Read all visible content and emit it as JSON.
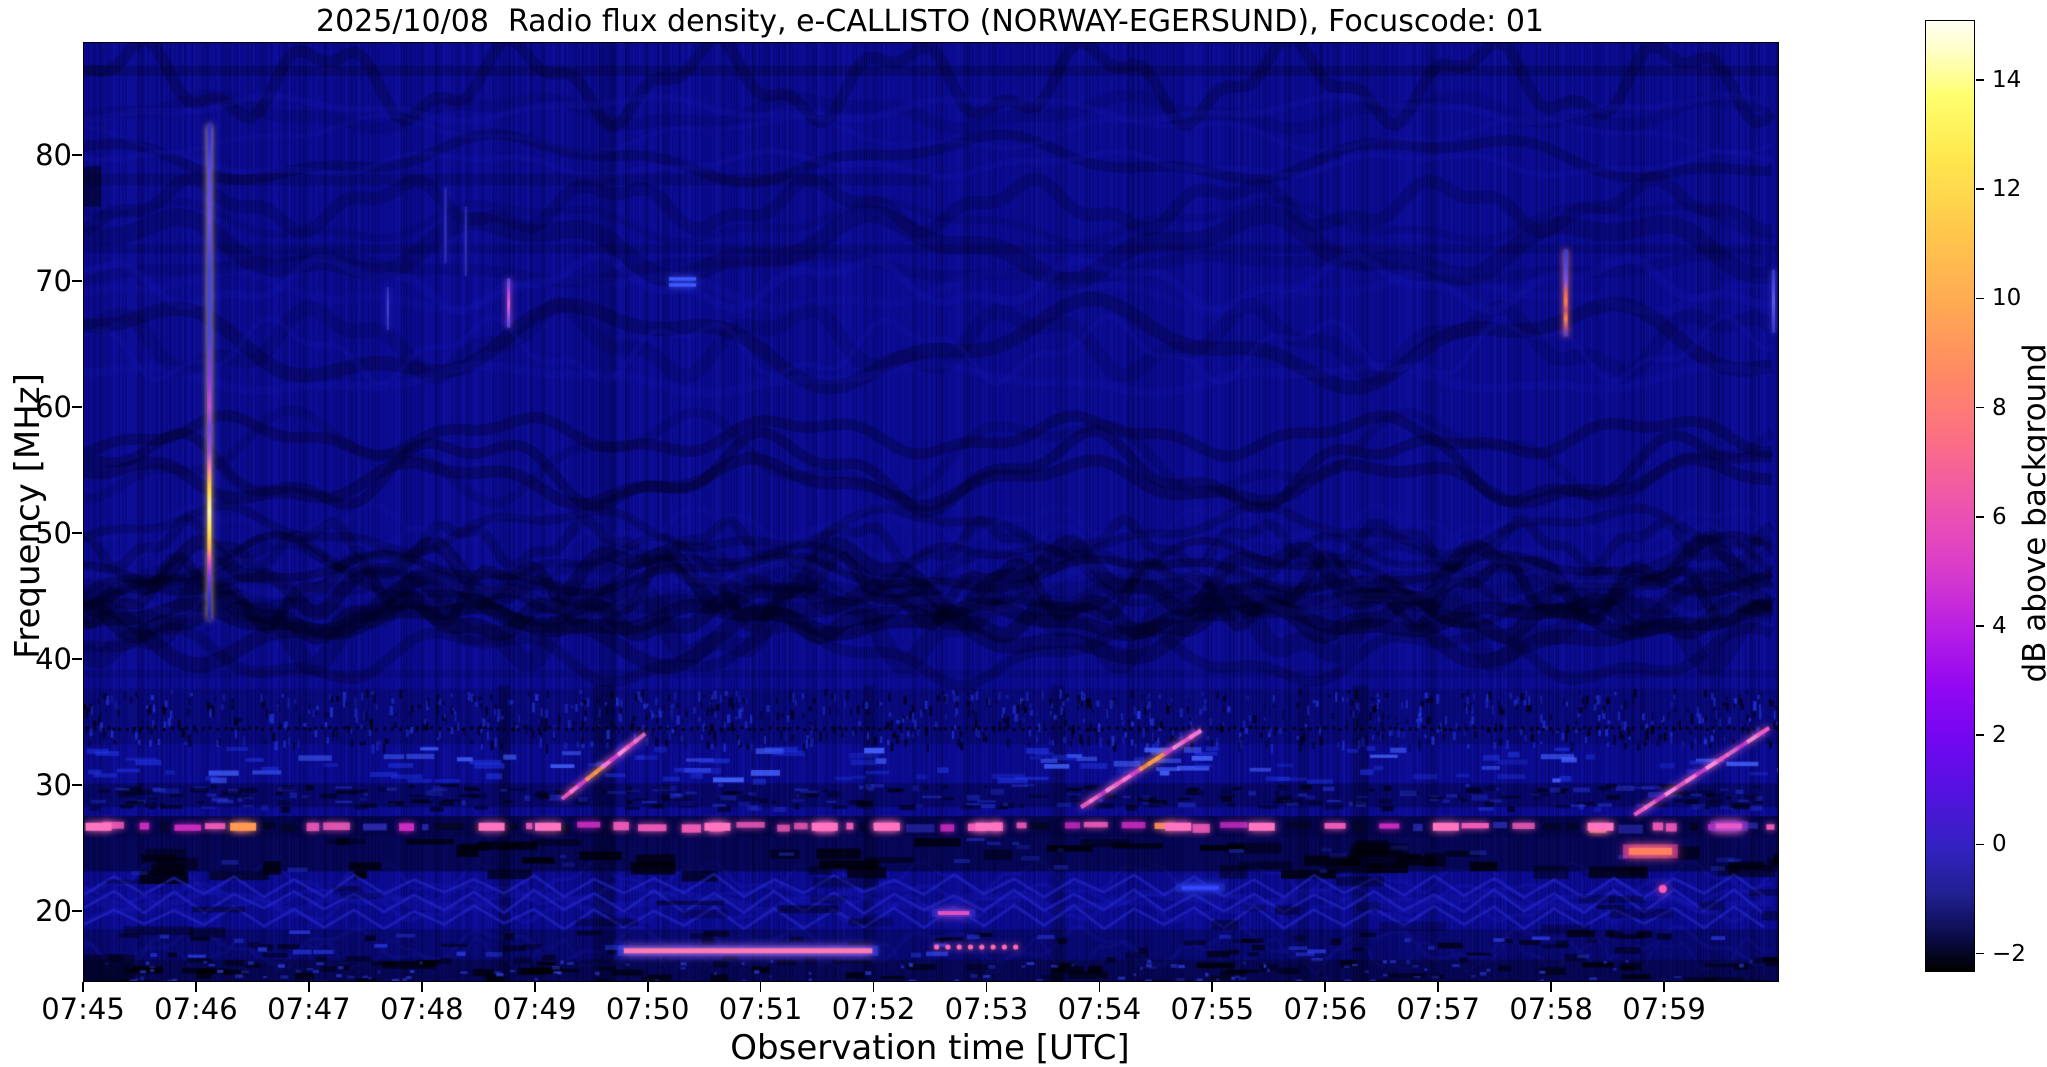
{
  "title": "2025/10/08  Radio flux density, e-CALLISTO (NORWAY-EGERSUND), Focuscode: 01",
  "chart_data": {
    "type": "heatmap",
    "title": "2025/10/08  Radio flux density, e-CALLISTO (NORWAY-EGERSUND), Focuscode: 01",
    "xlabel": "Observation time [UTC]",
    "ylabel": "Frequency [MHz]",
    "x_ticks": [
      "07:45",
      "07:46",
      "07:47",
      "07:48",
      "07:49",
      "07:50",
      "07:51",
      "07:52",
      "07:53",
      "07:54",
      "07:55",
      "07:56",
      "07:57",
      "07:58",
      "07:59"
    ],
    "x_total_minutes": 15,
    "x_range": [
      "07:45:00",
      "08:00:00"
    ],
    "y_ticks": [
      80,
      70,
      60,
      50,
      40,
      30,
      20
    ],
    "ylim": [
      14.5,
      89
    ],
    "grid": false,
    "colorbar": {
      "label": "dB above background",
      "ticks": [
        14,
        12,
        10,
        8,
        6,
        4,
        2,
        0,
        -2
      ],
      "vmin": -2.3,
      "vmax": 15.1,
      "colormap": "gnuplot2-like (black-blue-purple-magenta-pink-orange-yellow-white)",
      "gradient_top_to_bottom": [
        "#fffff4 0%",
        "#ffffc8 3%",
        "#ffff6e 8%",
        "#ffe94f 14%",
        "#ffc84b 22%",
        "#ffa953 30%",
        "#ff8a63 37%",
        "#fb6f84 44%",
        "#f058a8 50%",
        "#dc3fc8 57%",
        "#b81fe4 64%",
        "#9407f2 70%",
        "#7007f0 76%",
        "#4f14dc 82%",
        "#3322c0 87%",
        "#202090 92%",
        "#0d0d50 96%",
        "#000000 100%"
      ]
    },
    "render": {
      "seed": 1337,
      "base_color": "#0b0b92",
      "hbands": [
        {
          "t0": 0,
          "t1": 15,
          "f0": 87.2,
          "f1": 86.4,
          "a": 0.22
        },
        {
          "t0": 0,
          "t1": 7.5,
          "f0": 78.6,
          "f1": 77.7,
          "a": 0.16
        },
        {
          "t0": 0,
          "t1": 0.15,
          "f0": 79.2,
          "f1": 76.0,
          "a": 0.5
        },
        {
          "t0": 0,
          "t1": 15,
          "f0": 73.0,
          "f1": 72.3,
          "a": 0.14
        },
        {
          "t0": 0,
          "t1": 15,
          "f0": 39.2,
          "f1": 38.6,
          "a": 0.12
        },
        {
          "t0": 0,
          "t1": 0.45,
          "f0": 16.6,
          "f1": 14.5,
          "a": 0.5
        }
      ],
      "dark_columns": [
        {
          "t": 3.72,
          "w": 0.1,
          "f0": 38,
          "f1": 14.5,
          "a": 0.28
        },
        {
          "t": 4.6,
          "w": 0.18,
          "f0": 38,
          "f1": 14.5,
          "a": 0.3
        },
        {
          "t": 6.95,
          "w": 0.1,
          "f0": 38,
          "f1": 14.5,
          "a": 0.22
        },
        {
          "t": 8.63,
          "w": 0.12,
          "f0": 38,
          "f1": 14.5,
          "a": 0.25
        },
        {
          "t": 10.8,
          "w": 0.1,
          "f0": 38,
          "f1": 14.5,
          "a": 0.22
        },
        {
          "t": 11.3,
          "w": 0.14,
          "f0": 38,
          "f1": 14.5,
          "a": 0.25
        },
        {
          "t": 4.62,
          "w": 0.14,
          "f0": 89,
          "f1": 38,
          "a": 0.1
        },
        {
          "t": 8.65,
          "w": 0.12,
          "f0": 89,
          "f1": 38,
          "a": 0.08
        }
      ],
      "waves": [
        {
          "n": 20,
          "f0": 86,
          "f1": 38,
          "amp": [
            8,
            34
          ],
          "wl": [
            150,
            520
          ],
          "lw": [
            7,
            20
          ],
          "a": [
            0.1,
            0.3
          ],
          "dark": true
        },
        {
          "n": 8,
          "f0": 58,
          "f1": 43,
          "amp": [
            10,
            26
          ],
          "wl": [
            130,
            380
          ],
          "lw": [
            8,
            16
          ],
          "a": [
            0.18,
            0.38
          ],
          "dark": true
        },
        {
          "n": 10,
          "f0": 84,
          "f1": 40,
          "amp": [
            8,
            30
          ],
          "wl": [
            160,
            500
          ],
          "lw": [
            4,
            10
          ],
          "a": [
            0.08,
            0.2
          ],
          "dark": false
        },
        {
          "n": 6,
          "f0": 23,
          "f1": 16,
          "amp": [
            6,
            14
          ],
          "wl": [
            60,
            160
          ],
          "lw": [
            3,
            7
          ],
          "a": [
            0.15,
            0.3
          ],
          "dark": false
        }
      ],
      "bands": [
        {
          "kind": "hash",
          "f0": 37.7,
          "f1": 33.3,
          "base": "#000014",
          "base_a": 0.18,
          "n": 950,
          "dotrow_f": 34.55
        },
        {
          "kind": "bluedash",
          "f0": 33.2,
          "f1": 30.5,
          "n": 120
        },
        {
          "kind": "dim",
          "f0": 30.2,
          "f1": 28.3,
          "base": "#000010",
          "base_a": 0.3,
          "n": 300
        },
        {
          "kind": "rfi",
          "f0": 27.6,
          "f1": 25.9,
          "base": "#000014",
          "base_a": 0.55,
          "colors": [
            "#f25cb8",
            "#cc2cc0",
            "#ff8a5a",
            "#05051c",
            "#3030c0"
          ],
          "anchors": [
            {
              "t": 0.12,
              "c": "#ff74c0"
            },
            {
              "t": 1.4,
              "c": "#ff9a50"
            },
            {
              "t": 3.6,
              "c": "#ff74c0"
            },
            {
              "t": 4.1,
              "c": "#ff74c0"
            },
            {
              "t": 5.6,
              "c": "#ff74c0"
            },
            {
              "t": 6.55,
              "c": "#ff74c0"
            },
            {
              "t": 7.1,
              "c": "#ff74c0"
            },
            {
              "t": 8.0,
              "c": "#ff74c0"
            },
            {
              "t": 9.68,
              "c": "#ff74c0"
            },
            {
              "t": 10.42,
              "c": "#ff74c0"
            },
            {
              "t": 12.05,
              "c": "#ff74c0"
            },
            {
              "t": 13.42,
              "c": "#ff74c0"
            },
            {
              "t": 14.55,
              "c": "#ff74c0"
            }
          ]
        },
        {
          "kind": "dark",
          "f0": 25.9,
          "f1": 23.2,
          "base": "#000010",
          "base_a": 0.45,
          "n": 60
        },
        {
          "kind": "waves2",
          "f0": 23.2,
          "f1": 18.6,
          "n": 30
        },
        {
          "kind": "mixed",
          "f0": 18.6,
          "f1": 16.2,
          "base": "#000010",
          "base_a": 0.25,
          "n": 70
        },
        {
          "kind": "bottom",
          "f0": 16.2,
          "f1": 14.5,
          "base": "#00000a",
          "base_a": 0.45,
          "n": 80
        }
      ],
      "features": [
        {
          "type": "vburst",
          "name": "type-III-burst-0746",
          "t": 1.11,
          "w": 4,
          "glow": "#ffda60",
          "stops": [
            [
              82.5,
              "#2c2cd0"
            ],
            [
              79,
              "#5a46ee"
            ],
            [
              75,
              "#6a50f0"
            ],
            [
              71,
              "#4545dd"
            ],
            [
              66,
              "#4848e0"
            ],
            [
              62.5,
              "#8a3ae8"
            ],
            [
              60.2,
              "#c84ae0"
            ],
            [
              58.5,
              "#7a44e8"
            ],
            [
              56.5,
              "#a050e0"
            ],
            [
              55.2,
              "#ff80b0"
            ],
            [
              54.4,
              "#ffb060"
            ],
            [
              53.4,
              "#ffd850"
            ],
            [
              51.8,
              "#fff2b4"
            ],
            [
              50.2,
              "#ffe050"
            ],
            [
              48.9,
              "#ffb058"
            ],
            [
              48.2,
              "#ff70a0"
            ],
            [
              47.5,
              "#d048d8"
            ],
            [
              46.6,
              "#8038e8"
            ],
            [
              45.2,
              "#4038d0"
            ],
            [
              43.2,
              "#2626a8"
            ]
          ]
        },
        {
          "type": "vburst",
          "name": "burst-0748",
          "t": 3.76,
          "w": 3,
          "glow": "#d862e0",
          "stops": [
            [
              70.3,
              "#4a4ae8"
            ],
            [
              69.2,
              "#b048e0"
            ],
            [
              68.2,
              "#e062d8"
            ],
            [
              67.2,
              "#8a50e8"
            ],
            [
              66.4,
              "#4a4ae0"
            ]
          ]
        },
        {
          "type": "vburst",
          "name": "faint-burst-0747",
          "t": 2.69,
          "w": 2,
          "glow": "#3a3ad0",
          "stops": [
            [
              69.6,
              "#3030c0"
            ],
            [
              68,
              "#4a4ad8"
            ],
            [
              66.2,
              "#3030c0"
            ]
          ]
        },
        {
          "type": "vburst",
          "name": "faint-line-0748a",
          "t": 3.2,
          "w": 2,
          "glow": "#2a2ab4",
          "stops": [
            [
              77.5,
              "#2a2ab4"
            ],
            [
              74,
              "#3636c6"
            ],
            [
              71.5,
              "#2a2ab4"
            ]
          ]
        },
        {
          "type": "vburst",
          "name": "faint-line-0748b",
          "t": 3.38,
          "w": 2,
          "glow": "#2a2ab4",
          "stops": [
            [
              76,
              "#2a2ab4"
            ],
            [
              73,
              "#3434c4"
            ],
            [
              70.5,
              "#2a2ab4"
            ]
          ]
        },
        {
          "type": "vburst",
          "name": "burst-0758",
          "t": 13.12,
          "w": 4,
          "glow": "#ff7a50",
          "stops": [
            [
              72.6,
              "#3a3ad0"
            ],
            [
              71,
              "#5a4ae0"
            ],
            [
              70,
              "#8a50e0"
            ],
            [
              69.2,
              "#e06858"
            ],
            [
              68.4,
              "#ff7a50"
            ],
            [
              67.8,
              "#c05070"
            ],
            [
              67.1,
              "#ff8050"
            ],
            [
              66.3,
              "#a04890"
            ],
            [
              65.7,
              "#4a40c8"
            ]
          ]
        },
        {
          "type": "vburst",
          "name": "edge-burst-0800",
          "t": 14.96,
          "w": 3,
          "glow": "#4a4ae0",
          "stops": [
            [
              71,
              "#3434c8"
            ],
            [
              68.5,
              "#5a5ae8"
            ],
            [
              66,
              "#3434c8"
            ]
          ]
        },
        {
          "type": "hdashes",
          "name": "blue-dashes-0750",
          "t0": 5.18,
          "t1": 5.42,
          "f": 70.4,
          "rows": 2,
          "color": "#3d5aff"
        },
        {
          "type": "diag",
          "name": "drift-burst-0749",
          "t0": 4.28,
          "f0": 29.3,
          "t1": 4.92,
          "f1": 33.8,
          "n": 10,
          "core": [
            0.3,
            0.55
          ]
        },
        {
          "type": "diag",
          "name": "drift-burst-0754",
          "t0": 8.88,
          "f0": 28.6,
          "t1": 9.84,
          "f1": 34.1,
          "n": 14,
          "core": [
            0.5,
            0.72
          ]
        },
        {
          "type": "diag",
          "name": "drift-burst-0759",
          "t0": 13.78,
          "f0": 28.0,
          "t1": 14.87,
          "f1": 34.3,
          "n": 13,
          "core": [
            -1,
            -1
          ]
        },
        {
          "type": "hline",
          "name": "17mhz-line",
          "t0": 4.78,
          "t1": 6.98,
          "f": 16.9,
          "w": 5,
          "color": "#ff7ab0",
          "halo": "#2a3cf0"
        },
        {
          "type": "dotrow",
          "name": "17mhz-dots",
          "t0": 7.55,
          "t1": 8.25,
          "f": 17.2,
          "n": 8,
          "color": "#ff6ab0"
        },
        {
          "type": "hline",
          "name": "20mhz-dash",
          "t0": 7.56,
          "t1": 7.84,
          "f": 19.9,
          "w": 4,
          "color": "#e050c0",
          "halo": "#2a2cd0"
        },
        {
          "type": "hline",
          "name": "25mhz-blob",
          "t0": 13.68,
          "t1": 14.06,
          "f": 24.8,
          "w": 7,
          "color": "#ff8060",
          "halo": "#e040a0"
        },
        {
          "type": "hline",
          "name": "27mhz-dash-0759",
          "t0": 14.45,
          "t1": 14.68,
          "f": 26.8,
          "w": 5,
          "color": "#e858c8",
          "halo": "#8030c0"
        },
        {
          "type": "hline",
          "name": "22mhz-dash-0755",
          "t0": 9.72,
          "t1": 10.05,
          "f": 21.9,
          "w": 4,
          "color": "#3346ff",
          "halo": "#2030c0"
        },
        {
          "type": "spot",
          "name": "pink-dot-0759",
          "t": 13.98,
          "f": 21.8,
          "r": 4,
          "color": "#ff5ab4"
        }
      ]
    }
  }
}
